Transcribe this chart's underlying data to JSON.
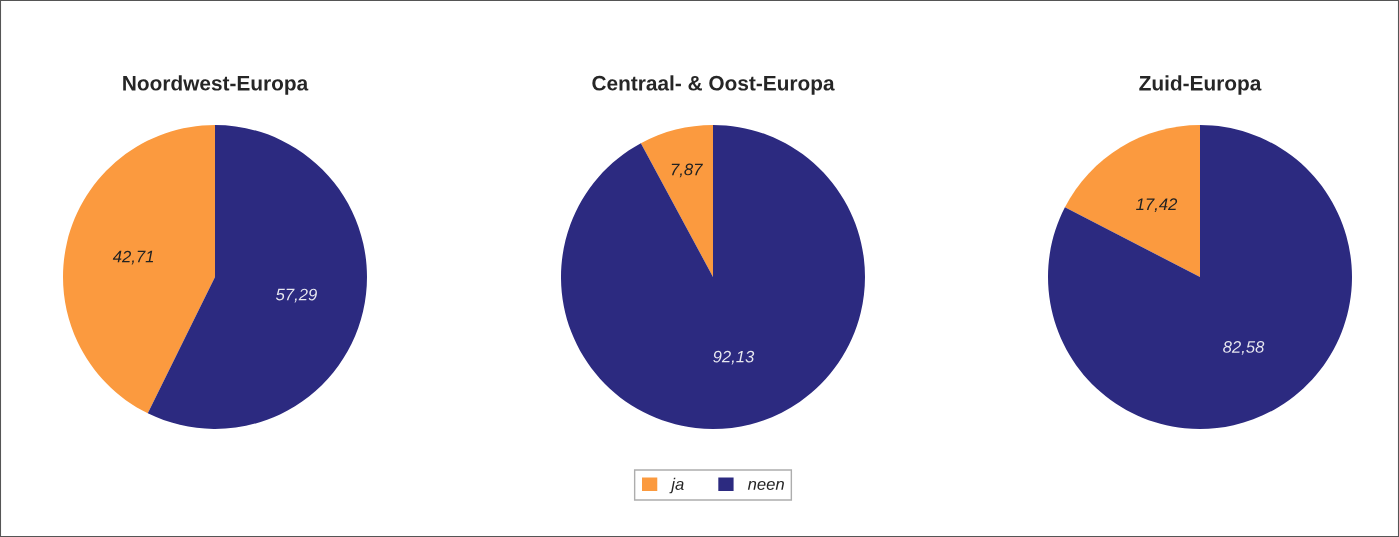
{
  "chart_data": [
    {
      "type": "pie",
      "title": "Noordwest-Europa",
      "categories": [
        "ja",
        "neen"
      ],
      "values": [
        42.71,
        57.29
      ],
      "colors": [
        "#fb9a3f",
        "#2c2a80"
      ],
      "value_labels": [
        "42,71",
        "57,29"
      ],
      "legend": "bottom"
    },
    {
      "type": "pie",
      "title": "Centraal- & Oost-Europa",
      "categories": [
        null,
        null
      ],
      "values": [
        7.87,
        92.13
      ],
      "colors": [
        "#fb9a3f",
        "#2c2a80"
      ],
      "value_labels": [
        "7,87",
        "92,13"
      ],
      "legend": false
    },
    {
      "type": "pie",
      "title": "Zuid-Europa",
      "categories": [
        null,
        null
      ],
      "values": [
        17.42,
        82.58
      ],
      "colors": [
        "#fb9a3f",
        "#2c2a80"
      ],
      "value_labels": [
        "17,42",
        "82,58"
      ],
      "legend": false
    }
  ]
}
